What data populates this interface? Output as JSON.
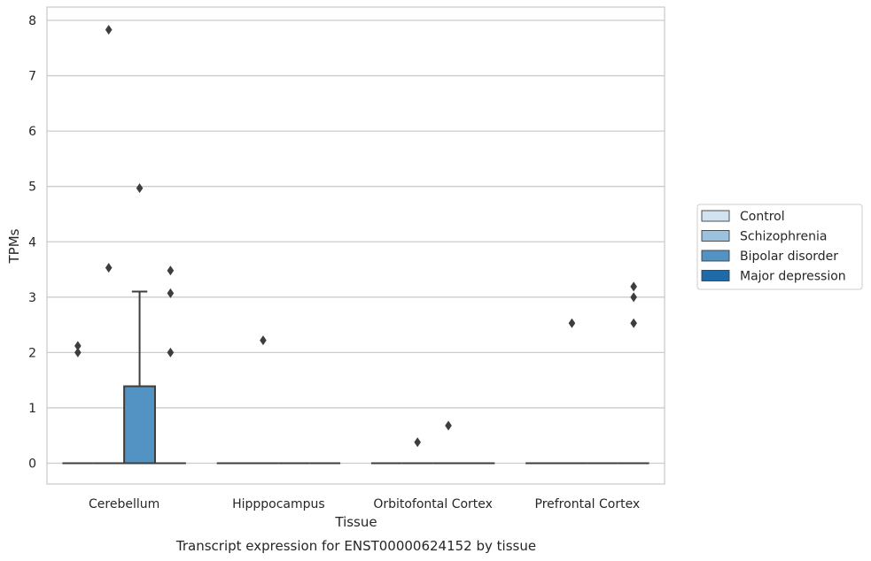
{
  "chart_data": {
    "type": "box",
    "caption": "Transcript expression for ENST00000624152 by tissue",
    "xlabel": "Tissue",
    "ylabel": "TPMs",
    "ylim": [
      -0.37,
      8.22
    ],
    "yticks": [
      "0",
      "1",
      "2",
      "3",
      "4",
      "5",
      "6",
      "7",
      "8"
    ],
    "grid": "horizontal",
    "legend_position": "right",
    "categories": [
      "Cerebellum",
      "Hipppocampus",
      "Orbitofontal Cortex",
      "Prefrontal Cortex"
    ],
    "series": [
      {
        "name": "Control",
        "color": "#d1e2f1"
      },
      {
        "name": "Schizophrenia",
        "color": "#9ac1de"
      },
      {
        "name": "Bipolar disorder",
        "color": "#5393c3"
      },
      {
        "name": "Major depression",
        "color": "#1f6aa9"
      }
    ],
    "boxes": [
      {
        "category": "Cerebellum",
        "series": "Control",
        "q1": 0,
        "median": 0,
        "q3": 0,
        "whisker_low": 0,
        "whisker_high": 0,
        "outliers": [
          2.0,
          2.12
        ]
      },
      {
        "category": "Cerebellum",
        "series": "Schizophrenia",
        "q1": 0,
        "median": 0,
        "q3": 0,
        "whisker_low": 0,
        "whisker_high": 0,
        "outliers": [
          3.53,
          7.83
        ]
      },
      {
        "category": "Cerebellum",
        "series": "Bipolar disorder",
        "q1": 0,
        "median": 0,
        "q3": 1.39,
        "whisker_low": 0,
        "whisker_high": 3.1,
        "outliers": [
          4.97
        ]
      },
      {
        "category": "Cerebellum",
        "series": "Major depression",
        "q1": 0,
        "median": 0,
        "q3": 0,
        "whisker_low": 0,
        "whisker_high": 0,
        "outliers": [
          2.0,
          3.07,
          3.48
        ]
      },
      {
        "category": "Hipppocampus",
        "series": "Control",
        "q1": 0,
        "median": 0,
        "q3": 0,
        "whisker_low": 0,
        "whisker_high": 0,
        "outliers": []
      },
      {
        "category": "Hipppocampus",
        "series": "Schizophrenia",
        "q1": 0,
        "median": 0,
        "q3": 0,
        "whisker_low": 0,
        "whisker_high": 0,
        "outliers": [
          2.22
        ]
      },
      {
        "category": "Hipppocampus",
        "series": "Bipolar disorder",
        "q1": 0,
        "median": 0,
        "q3": 0,
        "whisker_low": 0,
        "whisker_high": 0,
        "outliers": []
      },
      {
        "category": "Hipppocampus",
        "series": "Major depression",
        "q1": 0,
        "median": 0,
        "q3": 0,
        "whisker_low": 0,
        "whisker_high": 0,
        "outliers": []
      },
      {
        "category": "Orbitofontal Cortex",
        "series": "Control",
        "q1": 0,
        "median": 0,
        "q3": 0,
        "whisker_low": 0,
        "whisker_high": 0,
        "outliers": []
      },
      {
        "category": "Orbitofontal Cortex",
        "series": "Schizophrenia",
        "q1": 0,
        "median": 0,
        "q3": 0,
        "whisker_low": 0,
        "whisker_high": 0,
        "outliers": [
          0.38
        ]
      },
      {
        "category": "Orbitofontal Cortex",
        "series": "Bipolar disorder",
        "q1": 0,
        "median": 0,
        "q3": 0,
        "whisker_low": 0,
        "whisker_high": 0,
        "outliers": [
          0.68
        ]
      },
      {
        "category": "Orbitofontal Cortex",
        "series": "Major depression",
        "q1": 0,
        "median": 0,
        "q3": 0,
        "whisker_low": 0,
        "whisker_high": 0,
        "outliers": []
      },
      {
        "category": "Prefrontal Cortex",
        "series": "Control",
        "q1": 0,
        "median": 0,
        "q3": 0,
        "whisker_low": 0,
        "whisker_high": 0,
        "outliers": []
      },
      {
        "category": "Prefrontal Cortex",
        "series": "Schizophrenia",
        "q1": 0,
        "median": 0,
        "q3": 0,
        "whisker_low": 0,
        "whisker_high": 0,
        "outliers": [
          2.53
        ]
      },
      {
        "category": "Prefrontal Cortex",
        "series": "Bipolar disorder",
        "q1": 0,
        "median": 0,
        "q3": 0,
        "whisker_low": 0,
        "whisker_high": 0,
        "outliers": []
      },
      {
        "category": "Prefrontal Cortex",
        "series": "Major depression",
        "q1": 0,
        "median": 0,
        "q3": 0,
        "whisker_low": 0,
        "whisker_high": 0,
        "outliers": [
          2.53,
          3.0,
          3.19
        ]
      }
    ]
  }
}
